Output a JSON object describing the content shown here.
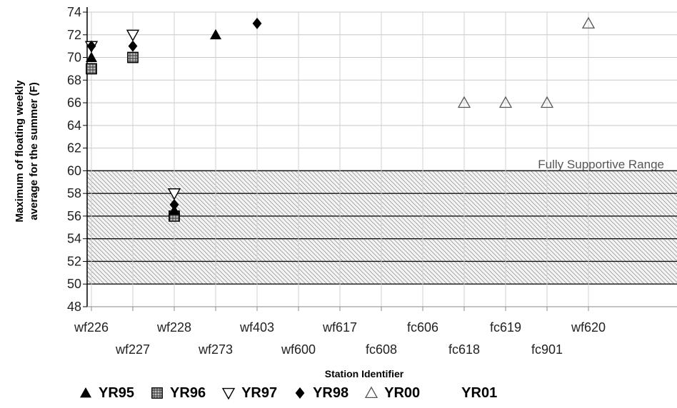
{
  "chart_data": {
    "type": "scatter",
    "title": "",
    "xlabel": "Station Identifier",
    "ylabel_line1": "Maximum of floating weekly",
    "ylabel_line2": "average for the summer (F)",
    "ylim": [
      48,
      74
    ],
    "yticks": [
      48,
      50,
      52,
      54,
      56,
      58,
      60,
      62,
      64,
      66,
      68,
      70,
      72,
      74
    ],
    "categories": [
      "wf226",
      "wf227",
      "wf228",
      "wf273",
      "wf403",
      "wf600",
      "wf617",
      "fc608",
      "fc606",
      "fc618",
      "fc619",
      "fc901",
      "wf620"
    ],
    "categories_top_row": [
      "wf226",
      "wf228",
      "wf403",
      "wf617",
      "fc606",
      "fc619",
      "wf620"
    ],
    "categories_bottom_row": [
      "wf227",
      "wf273",
      "wf600",
      "fc608",
      "fc618",
      "fc901"
    ],
    "grid": true,
    "band": {
      "from": 50,
      "to": 60,
      "label": "Fully Supportive Range"
    },
    "series": [
      {
        "name": "YR95",
        "marker": "filled-triangle",
        "color": "#000000",
        "points": [
          {
            "x": "wf226",
            "y": 70
          },
          {
            "x": "wf228",
            "y": 56.5
          },
          {
            "x": "wf273",
            "y": 72
          }
        ]
      },
      {
        "name": "YR96",
        "marker": "hatched-square",
        "color": "#000000",
        "points": [
          {
            "x": "wf226",
            "y": 69
          },
          {
            "x": "wf227",
            "y": 70
          },
          {
            "x": "wf228",
            "y": 56
          }
        ]
      },
      {
        "name": "YR97",
        "marker": "open-down-triangle",
        "color": "#000000",
        "points": [
          {
            "x": "wf226",
            "y": 71
          },
          {
            "x": "wf227",
            "y": 72
          },
          {
            "x": "wf228",
            "y": 58
          }
        ]
      },
      {
        "name": "YR98",
        "marker": "filled-diamond",
        "color": "#000000",
        "points": [
          {
            "x": "wf226",
            "y": 71
          },
          {
            "x": "wf227",
            "y": 71
          },
          {
            "x": "wf228",
            "y": 57
          },
          {
            "x": "wf403",
            "y": 73
          }
        ]
      },
      {
        "name": "YR00",
        "marker": "open-triangle",
        "color": "#555555",
        "points": [
          {
            "x": "fc618",
            "y": 66
          },
          {
            "x": "fc619",
            "y": 66
          },
          {
            "x": "fc901",
            "y": 66
          },
          {
            "x": "wf620",
            "y": 73
          }
        ]
      },
      {
        "name": "YR01",
        "marker": "none",
        "color": "#000000",
        "points": []
      }
    ]
  }
}
